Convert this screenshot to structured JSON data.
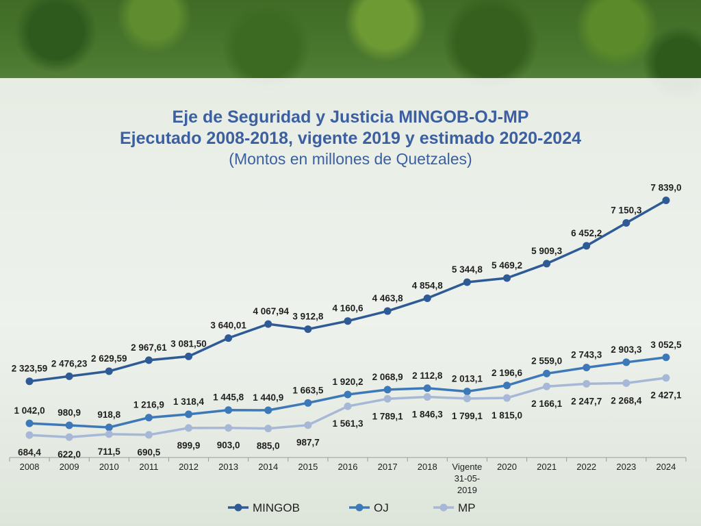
{
  "title": {
    "line1": "Eje de Seguridad y Justicia MINGOB-OJ-MP",
    "line2": "Ejecutado 2008-2018, vigente 2019 y estimado 2020-2024",
    "line3": "(Montos en millones de Quetzales)"
  },
  "chart_data": {
    "type": "line",
    "title": "Eje de Seguridad y Justicia MINGOB-OJ-MP",
    "subtitle": "Ejecutado 2008-2018, vigente 2019 y estimado 2020-2024 (Montos en millones de Quetzales)",
    "xlabel": "",
    "ylabel": "",
    "ylim": [
      0,
      8000
    ],
    "grid": false,
    "legend_position": "bottom",
    "categories": [
      [
        "2008"
      ],
      [
        "2009"
      ],
      [
        "2010"
      ],
      [
        "2011"
      ],
      [
        "2012"
      ],
      [
        "2013"
      ],
      [
        "2014"
      ],
      [
        "2015"
      ],
      [
        "2016"
      ],
      [
        "2017"
      ],
      [
        "2018"
      ],
      [
        "Vigente",
        "31-05-",
        "2019"
      ],
      [
        "2020"
      ],
      [
        "2021"
      ],
      [
        "2022"
      ],
      [
        "2023"
      ],
      [
        "2024"
      ]
    ],
    "series": [
      {
        "name": "MINGOB",
        "color": "#2e5a96",
        "values": [
          2323.59,
          2476.23,
          2629.59,
          2967.61,
          3081.5,
          3640.01,
          4067.94,
          3912.8,
          4160.6,
          4463.8,
          4854.8,
          5344.8,
          5469.2,
          5909.3,
          6452.2,
          7150.3,
          7839.0
        ],
        "labels": [
          "2 323,59",
          "2 476,23",
          "2 629,59",
          "2 967,61",
          "3 081,50",
          "3 640,01",
          "4 067,94",
          "3 912,8",
          "4 160,6",
          "4 463,8",
          "4 854,8",
          "5 344,8",
          "5 469,2",
          "5 909,3",
          "6 452,2",
          "7 150,3",
          "7 839,0"
        ]
      },
      {
        "name": "OJ",
        "color": "#3d78b8",
        "values": [
          1042.0,
          980.9,
          918.8,
          1216.9,
          1318.4,
          1445.8,
          1440.9,
          1663.5,
          1920.2,
          2068.9,
          2112.8,
          2013.1,
          2196.6,
          2559.0,
          2743.3,
          2903.3,
          3052.5
        ],
        "labels": [
          "1 042,0",
          "980,9",
          "918,8",
          "1 216,9",
          "1 318,4",
          "1 445,8",
          "1 440,9",
          "1 663,5",
          "1 920,2",
          "2 068,9",
          "2 112,8",
          "2 013,1",
          "2 196,6",
          "2 559,0",
          "2 743,3",
          "2 903,3",
          "3 052,5"
        ]
      },
      {
        "name": "MP",
        "color": "#a7b7d6",
        "values": [
          684.4,
          622.0,
          711.5,
          690.5,
          899.9,
          903.0,
          885.0,
          987.7,
          1561.3,
          1789.1,
          1846.3,
          1799.1,
          1815.0,
          2166.1,
          2247.7,
          2268.4,
          2427.1
        ],
        "labels": [
          "684,4",
          "622,0",
          "711,5",
          "690,5",
          "899,9",
          "903,0",
          "885,0",
          "987,7",
          "1 561,3",
          "1 789,1",
          "1 846,3",
          "1 799,1",
          "1 815,0",
          "2 166,1",
          "2 247,7",
          "2 268,4",
          "2 427,1"
        ]
      }
    ]
  }
}
